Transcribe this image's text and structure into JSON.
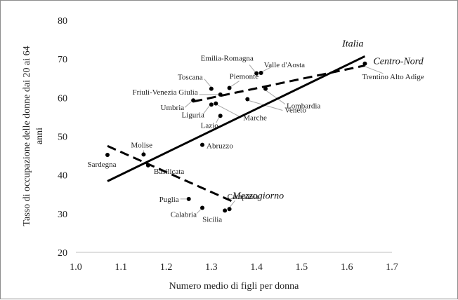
{
  "chart_data": {
    "type": "scatter",
    "xlabel": "Numero medio di figli per donna",
    "ylabel": [
      "Tasso di occupazione  delle donne dai 20 ai 64",
      "anni"
    ],
    "xlim": [
      1.0,
      1.7
    ],
    "ylim": [
      20,
      80
    ],
    "x_ticks": [
      "1.0",
      "1.1",
      "1.2",
      "1.3",
      "1.4",
      "1.5",
      "1.6",
      "1.7"
    ],
    "y_ticks": [
      "20",
      "30",
      "40",
      "50",
      "60",
      "70",
      "80"
    ],
    "grid": false,
    "points": [
      {
        "name": "Trentino Alto Adige",
        "x": 1.64,
        "y": 68.8
      },
      {
        "name": "Valle d'Aosta",
        "x": 1.41,
        "y": 66.4
      },
      {
        "name": "Emilia-Romagna",
        "x": 1.4,
        "y": 66.3
      },
      {
        "name": "Toscana",
        "x": 1.3,
        "y": 62.3
      },
      {
        "name": "Piemonte",
        "x": 1.34,
        "y": 62.5
      },
      {
        "name": "Lombardia",
        "x": 1.42,
        "y": 62.3
      },
      {
        "name": "Friuli-Venezia Giulia",
        "x": 1.32,
        "y": 60.8
      },
      {
        "name": "Umbria",
        "x": 1.26,
        "y": 59.3
      },
      {
        "name": "Veneto",
        "x": 1.38,
        "y": 59.6
      },
      {
        "name": "Liguria",
        "x": 1.3,
        "y": 58.2
      },
      {
        "name": "Marche",
        "x": 1.31,
        "y": 58.5
      },
      {
        "name": "Lazio",
        "x": 1.32,
        "y": 55.3
      },
      {
        "name": "Abruzzo",
        "x": 1.28,
        "y": 47.8
      },
      {
        "name": "Molise",
        "x": 1.15,
        "y": 45.3
      },
      {
        "name": "Sardegna",
        "x": 1.07,
        "y": 45.2
      },
      {
        "name": "Basilicata",
        "x": 1.16,
        "y": 42.5
      },
      {
        "name": "Puglia",
        "x": 1.25,
        "y": 33.8
      },
      {
        "name": "Campania",
        "x": 1.34,
        "y": 31.2
      },
      {
        "name": "Calabria",
        "x": 1.28,
        "y": 31.5
      },
      {
        "name": "Sicilia",
        "x": 1.33,
        "y": 30.8
      }
    ],
    "lines": [
      {
        "name": "Italia",
        "style": "solid",
        "x": [
          1.07,
          1.64
        ],
        "y": [
          38.4,
          70.7
        ]
      },
      {
        "name": "Centro-Nord",
        "style": "dashed",
        "x": [
          1.26,
          1.64
        ],
        "y": [
          59.0,
          68.3
        ]
      },
      {
        "name": "Mezzogiorno",
        "style": "dashed",
        "x": [
          1.07,
          1.35
        ],
        "y": [
          47.5,
          33.0
        ]
      }
    ],
    "colors": {
      "points": "#000000",
      "lines": "#000000",
      "leaders": "#a6a6a6"
    }
  }
}
